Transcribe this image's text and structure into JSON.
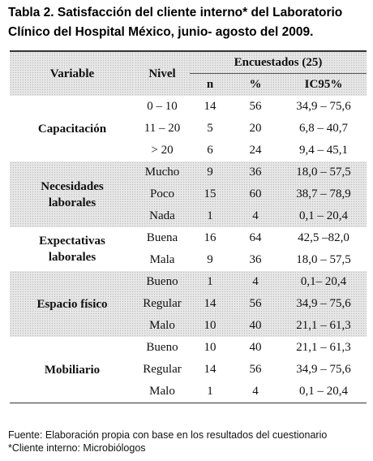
{
  "title_lines": [
    "Tabla 2. Satisfacción del cliente interno* del Laboratorio",
    "Clínico del Hospital México, junio- agosto del 2009."
  ],
  "table": {
    "headers": {
      "variable": "Variable",
      "nivel": "Nivel",
      "group": "Encuestados (25)",
      "n": "n",
      "pct": "%",
      "ci": "IC95%"
    },
    "groups": [
      {
        "variable": "Capacitación",
        "rows": [
          {
            "nivel": "0 – 10",
            "n": 14,
            "pct": 56,
            "ci": "34,9 – 75,6"
          },
          {
            "nivel": "11 – 20",
            "n": 5,
            "pct": 20,
            "ci": "6,8 – 40,7"
          },
          {
            "nivel": "> 20",
            "n": 6,
            "pct": 24,
            "ci": "9,4  – 45,1"
          }
        ]
      },
      {
        "variable": "Necesidades laborales",
        "rows": [
          {
            "nivel": "Mucho",
            "n": 9,
            "pct": 36,
            "ci": "18,0 – 57,5"
          },
          {
            "nivel": "Poco",
            "n": 15,
            "pct": 60,
            "ci": "38,7 – 78,9"
          },
          {
            "nivel": "Nada",
            "n": 1,
            "pct": 4,
            "ci": "0,1 – 20,4"
          }
        ]
      },
      {
        "variable": "Expectativas laborales",
        "rows": [
          {
            "nivel": "Buena",
            "n": 16,
            "pct": 64,
            "ci": "42,5 –82,0"
          },
          {
            "nivel": "Mala",
            "n": 9,
            "pct": 36,
            "ci": "18,0 – 57,5"
          }
        ]
      },
      {
        "variable": "Espacio físico",
        "rows": [
          {
            "nivel": "Bueno",
            "n": 1,
            "pct": 4,
            "ci": "0,1– 20,4"
          },
          {
            "nivel": "Regular",
            "n": 14,
            "pct": 56,
            "ci": "34,9 – 75,6"
          },
          {
            "nivel": "Malo",
            "n": 10,
            "pct": 40,
            "ci": "21,1 – 61,3"
          }
        ]
      },
      {
        "variable": "Mobiliario",
        "rows": [
          {
            "nivel": "Bueno",
            "n": 10,
            "pct": 40,
            "ci": "21,1 – 61,3"
          },
          {
            "nivel": "Regular",
            "n": 14,
            "pct": 56,
            "ci": "34,9 – 75,6"
          },
          {
            "nivel": "Malo",
            "n": 1,
            "pct": 4,
            "ci": "0,1 – 20,4"
          }
        ]
      }
    ]
  },
  "footnotes": [
    "Fuente: Elaboración propia con base en los resultados del cuestionario",
    "*Cliente interno: Microbiólogos"
  ]
}
